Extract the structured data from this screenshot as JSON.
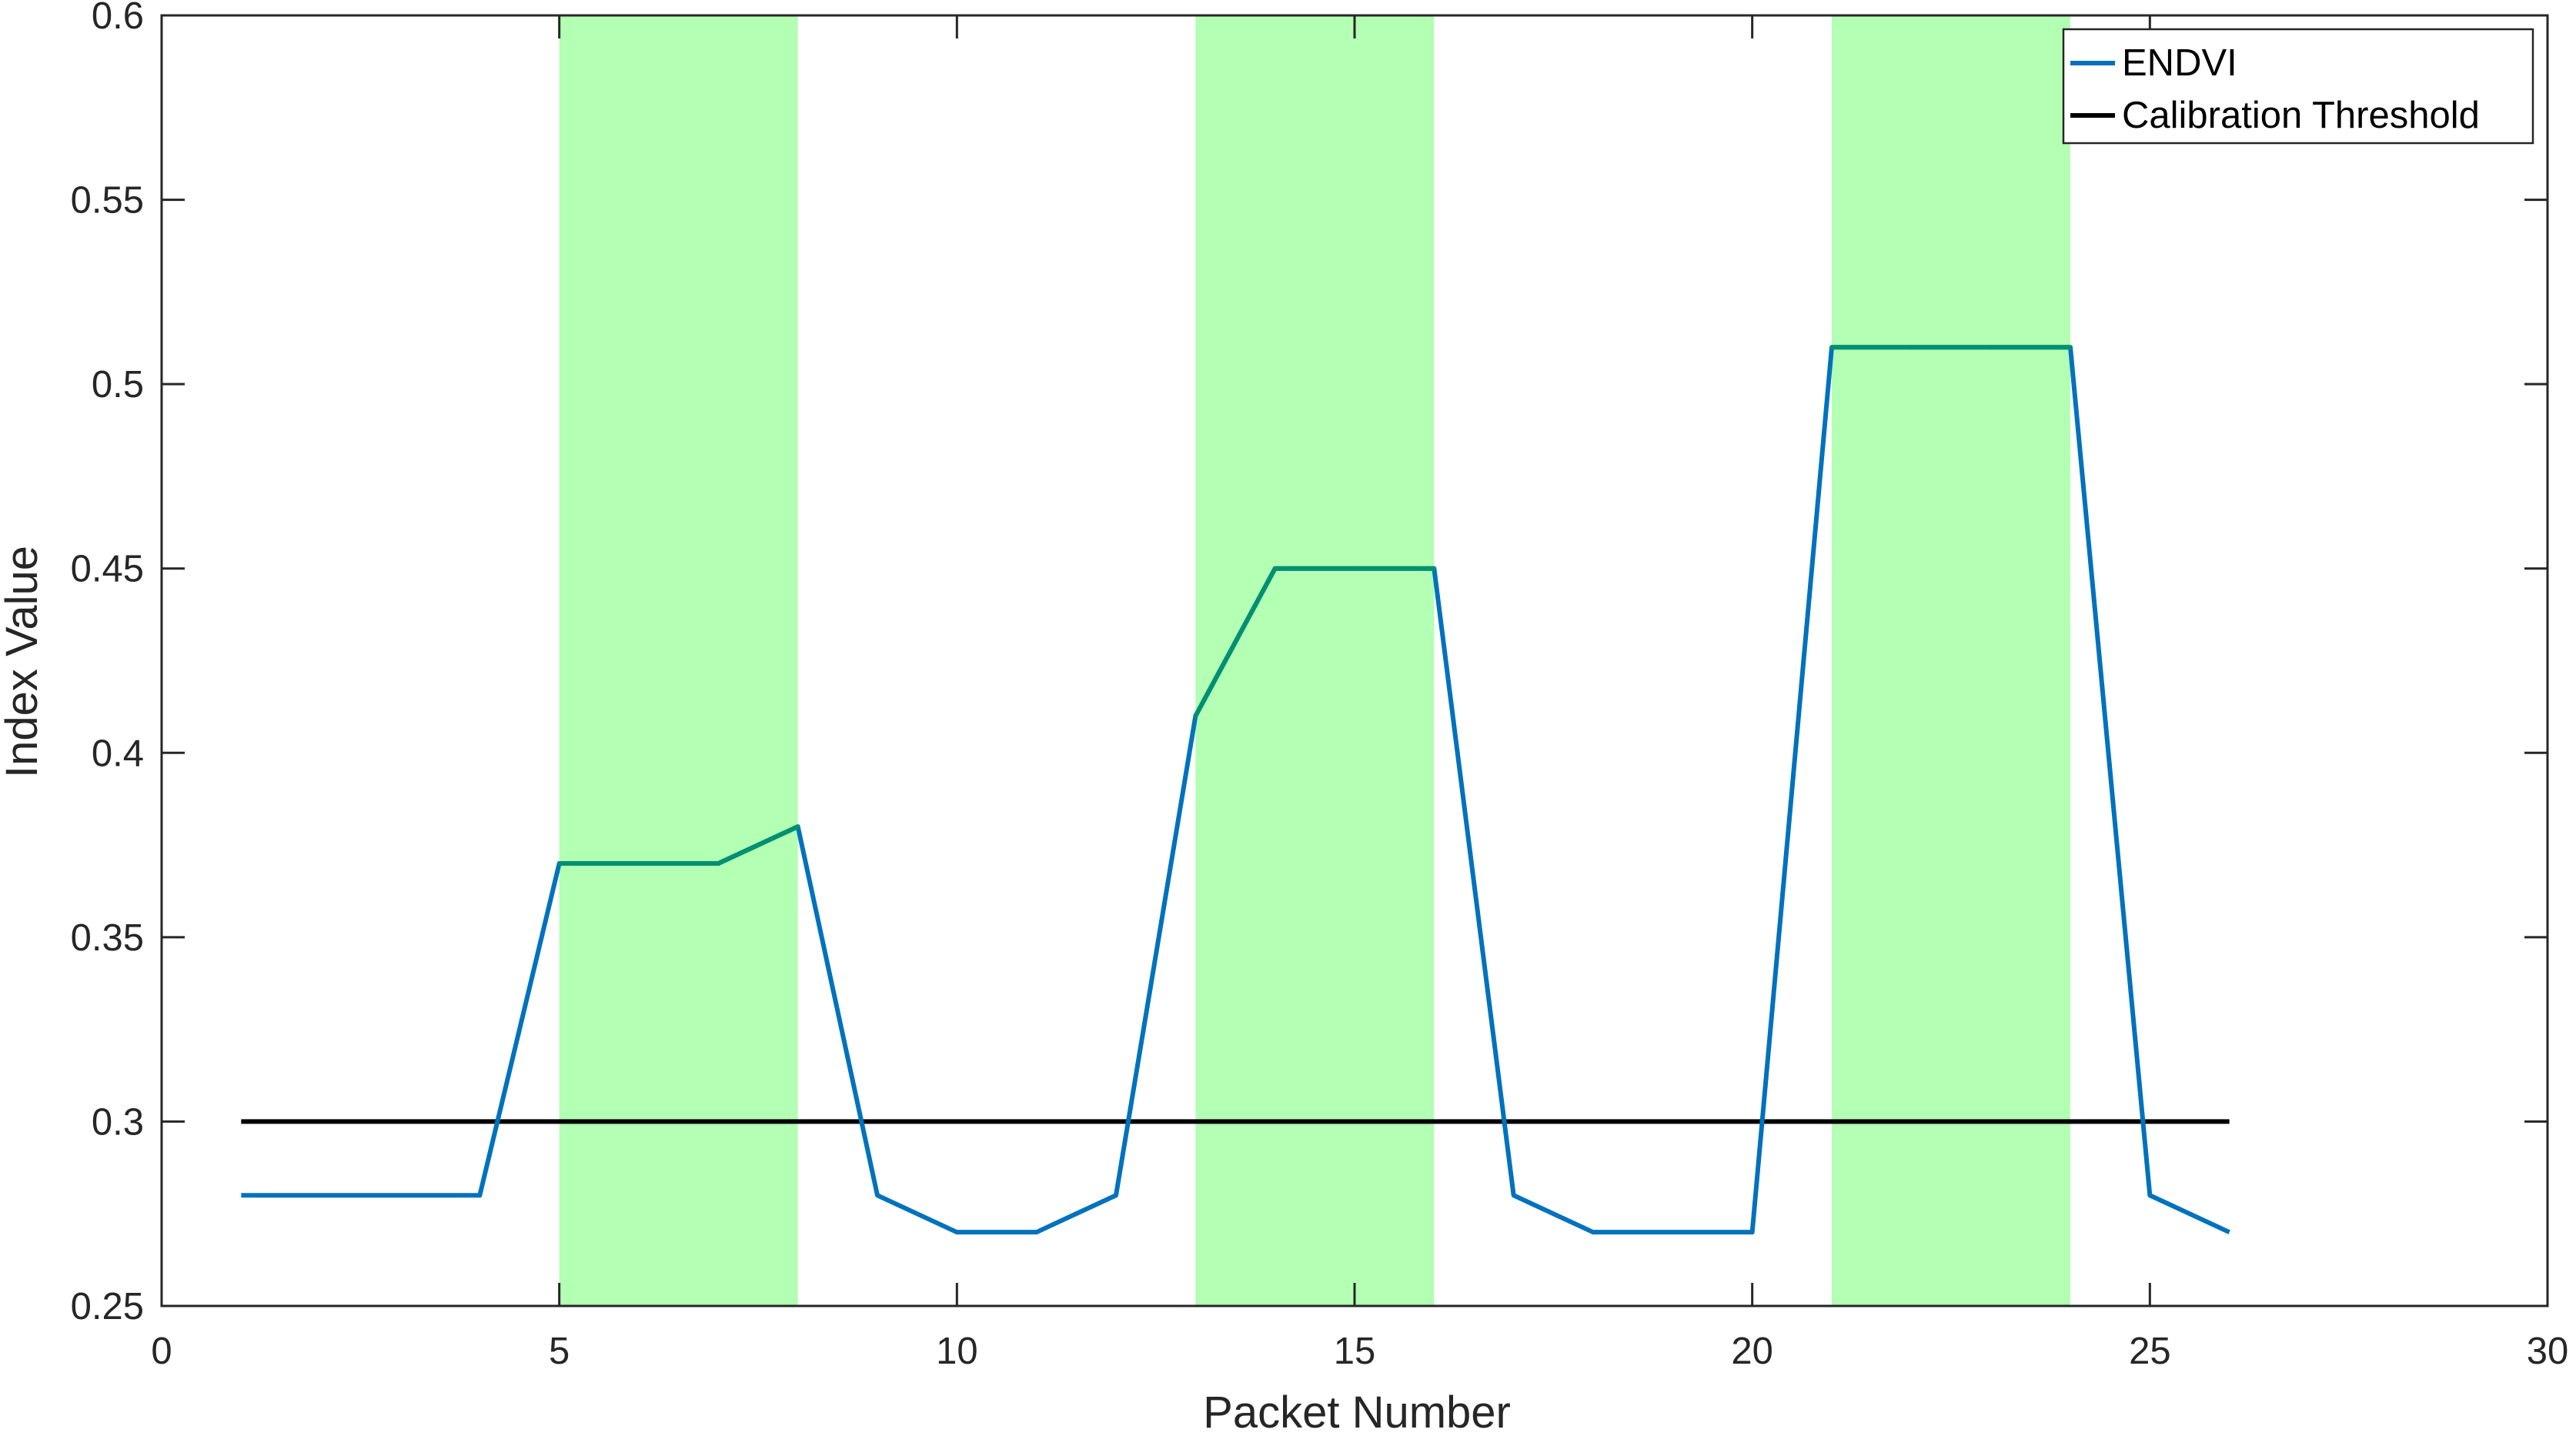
{
  "chart_data": {
    "type": "line",
    "xlabel": "Packet Number",
    "ylabel": "Index Value",
    "xlim": [
      0,
      30
    ],
    "ylim": [
      0.25,
      0.6
    ],
    "xticks": [
      "0",
      "5",
      "10",
      "15",
      "20",
      "25",
      "30"
    ],
    "yticks": [
      "0.25",
      "0.3",
      "0.35",
      "0.4",
      "0.45",
      "0.5",
      "0.55",
      "0.6"
    ],
    "grid": false,
    "legend_position": "top-right",
    "shaded_regions": [
      {
        "x_start": 5,
        "x_end": 8,
        "color": "#b3ffb3"
      },
      {
        "x_start": 13,
        "x_end": 16,
        "color": "#b3ffb3"
      },
      {
        "x_start": 21,
        "x_end": 24,
        "color": "#b3ffb3"
      }
    ],
    "series": [
      {
        "name": "ENDVI",
        "color": "#0072bd",
        "highlight_color": "#009070",
        "x": [
          1,
          2,
          3,
          4,
          5,
          6,
          7,
          8,
          9,
          10,
          11,
          12,
          13,
          14,
          15,
          16,
          17,
          18,
          19,
          20,
          21,
          22,
          23,
          24,
          25,
          26
        ],
        "values": [
          0.28,
          0.28,
          0.28,
          0.28,
          0.37,
          0.37,
          0.37,
          0.38,
          0.28,
          0.27,
          0.27,
          0.28,
          0.41,
          0.45,
          0.45,
          0.45,
          0.28,
          0.27,
          0.27,
          0.27,
          0.51,
          0.51,
          0.51,
          0.51,
          0.28,
          0.27
        ]
      },
      {
        "name": "Calibration Threshold",
        "color": "#000000",
        "x": [
          1,
          26
        ],
        "values": [
          0.3,
          0.3
        ]
      }
    ]
  }
}
